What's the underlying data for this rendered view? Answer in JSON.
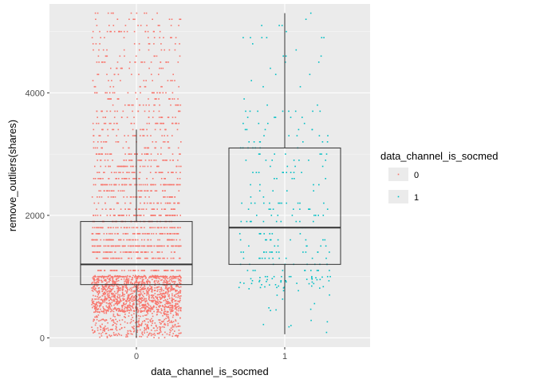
{
  "chart_data": {
    "type": "boxplot-jitter",
    "xlabel": "data_channel_is_socmed",
    "ylabel": "remove_outliers(shares)",
    "categories": [
      "0",
      "1"
    ],
    "y_ticks": [
      0,
      2000,
      4000
    ],
    "ylim": [
      -150,
      5450
    ],
    "grid": true,
    "legend": {
      "title": "data_channel_is_socmed",
      "placement": "right",
      "entries": [
        {
          "label": "0",
          "color": "#F8766D"
        },
        {
          "label": "1",
          "color": "#00BFC4"
        }
      ]
    },
    "boxes": [
      {
        "category": "0",
        "min": 0,
        "q1": 870,
        "median": 1200,
        "q3": 1900,
        "max": 3400
      },
      {
        "category": "1",
        "min": 60,
        "q1": 1200,
        "median": 1800,
        "q3": 3100,
        "max": 5300
      }
    ],
    "points_description": {
      "0": {
        "count_approx": 3000,
        "range": [
          0,
          5300
        ],
        "color": "#F8766D"
      },
      "1": {
        "count_approx": 300,
        "range": [
          50,
          5300
        ],
        "color": "#00BFC4"
      }
    }
  }
}
